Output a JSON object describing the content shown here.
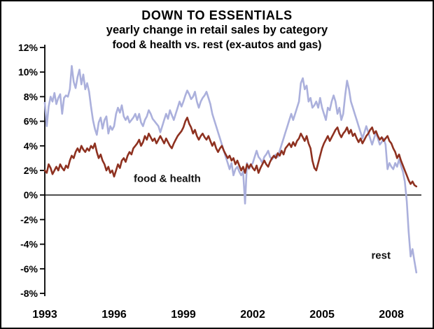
{
  "window": {
    "background": "#ffffff",
    "border_color": "#000000"
  },
  "chart_data": {
    "type": "line",
    "title": "DOWN TO ESSENTIALS",
    "subtitle": "yearly change in retail sales by category",
    "subtitle2": "food & health vs. rest (ex-autos and gas)",
    "xlabel": "",
    "ylabel": "",
    "xlim": [
      1993,
      2009.3
    ],
    "ylim": [
      -8,
      12
    ],
    "grid": false,
    "legend_position": "inline-labels",
    "axis_color": "#000000",
    "x_start": 1993,
    "x_step": 0.0833333,
    "yticks": [
      {
        "value": 12,
        "label": "12%"
      },
      {
        "value": 10,
        "label": "10%"
      },
      {
        "value": 8,
        "label": "8%"
      },
      {
        "value": 6,
        "label": "6%"
      },
      {
        "value": 4,
        "label": "4%"
      },
      {
        "value": 2,
        "label": "2%"
      },
      {
        "value": 0,
        "label": "0%"
      },
      {
        "value": -2,
        "label": "-2%"
      },
      {
        "value": -4,
        "label": "-4%"
      },
      {
        "value": -6,
        "label": "-6%"
      },
      {
        "value": -8,
        "label": "-8%"
      }
    ],
    "xticks": [
      {
        "value": 1993,
        "label": "1993"
      },
      {
        "value": 1996,
        "label": "1996"
      },
      {
        "value": 1999,
        "label": "1999"
      },
      {
        "value": 2002,
        "label": "2002"
      },
      {
        "value": 2005,
        "label": "2005"
      },
      {
        "value": 2008,
        "label": "2008"
      }
    ],
    "series": [
      {
        "name": "rest",
        "color": "#abb0dc",
        "label": {
          "text": "rest",
          "x": 2007.55,
          "y": -5.2
        },
        "values": [
          7.5,
          5.6,
          7.2,
          8.0,
          7.6,
          8.3,
          7.4,
          7.9,
          8.2,
          6.6,
          7.9,
          8.1,
          8.0,
          8.6,
          10.5,
          9.2,
          8.7,
          9.6,
          10.2,
          9.0,
          9.8,
          8.6,
          9.1,
          8.4,
          7.2,
          6.1,
          5.4,
          4.9,
          5.9,
          6.3,
          5.4,
          6.1,
          6.4,
          5.0,
          5.6,
          5.3,
          5.6,
          6.6,
          7.1,
          6.7,
          7.3,
          6.4,
          6.1,
          6.4,
          5.9,
          6.1,
          6.3,
          6.6,
          6.1,
          6.6,
          5.9,
          5.6,
          6.1,
          6.4,
          6.9,
          6.6,
          6.2,
          6.0,
          5.8,
          5.6,
          5.1,
          5.6,
          6.1,
          6.6,
          6.2,
          6.9,
          6.5,
          6.1,
          6.6,
          7.1,
          7.6,
          7.2,
          7.6,
          8.1,
          8.5,
          8.2,
          7.8,
          8.0,
          8.4,
          7.6,
          7.1,
          7.6,
          7.9,
          8.1,
          8.4,
          7.9,
          7.4,
          6.6,
          6.1,
          5.6,
          5.1,
          4.6,
          4.1,
          3.6,
          3.1,
          2.6,
          2.1,
          2.6,
          1.6,
          2.1,
          2.3,
          1.9,
          1.6,
          1.9,
          -0.7,
          2.6,
          2.1,
          2.4,
          2.6,
          3.1,
          3.6,
          3.1,
          2.9,
          2.6,
          3.1,
          3.3,
          3.6,
          3.1,
          2.9,
          3.1,
          3.3,
          3.1,
          3.6,
          4.1,
          4.6,
          5.1,
          5.6,
          6.1,
          6.6,
          6.1,
          6.6,
          7.1,
          7.6,
          9.1,
          9.5,
          8.6,
          8.9,
          7.6,
          7.9,
          7.1,
          7.3,
          7.6,
          7.1,
          7.9,
          7.1,
          6.6,
          6.1,
          7.1,
          6.9,
          7.6,
          8.1,
          7.6,
          6.6,
          7.1,
          6.1,
          6.6,
          8.1,
          9.3,
          8.6,
          7.6,
          7.1,
          6.6,
          6.1,
          5.6,
          5.1,
          4.6,
          5.1,
          5.6,
          5.1,
          4.6,
          4.1,
          4.6,
          5.1,
          4.6,
          4.1,
          4.3,
          4.6,
          4.1,
          2.1,
          2.6,
          2.3,
          2.1,
          2.6,
          2.3,
          2.9,
          2.4,
          1.9,
          1.1,
          -0.5,
          -3.0,
          -5.0,
          -4.4,
          -5.4,
          -6.3
        ]
      },
      {
        "name": "food & health",
        "color": "#8e3120",
        "label": {
          "text": "food & health",
          "x": 1998.3,
          "y": 1.05
        },
        "values": [
          2.0,
          1.8,
          2.5,
          2.2,
          1.7,
          2.0,
          2.3,
          2.0,
          2.5,
          2.2,
          2.0,
          2.4,
          2.2,
          2.8,
          3.2,
          3.0,
          3.5,
          3.8,
          3.5,
          4.0,
          3.7,
          3.5,
          3.8,
          3.6,
          4.0,
          3.8,
          4.2,
          3.5,
          3.0,
          3.3,
          2.8,
          2.5,
          2.0,
          2.3,
          1.8,
          2.0,
          1.5,
          2.0,
          2.5,
          2.2,
          2.8,
          3.0,
          2.7,
          3.2,
          3.5,
          3.3,
          3.8,
          4.0,
          4.2,
          4.5,
          4.0,
          4.3,
          4.8,
          4.5,
          5.0,
          4.7,
          4.4,
          4.6,
          4.2,
          4.5,
          4.8,
          4.5,
          4.2,
          4.6,
          4.3,
          4.0,
          3.8,
          4.2,
          4.5,
          4.8,
          5.0,
          5.2,
          5.5,
          6.0,
          6.3,
          5.8,
          5.5,
          5.0,
          5.3,
          4.8,
          4.5,
          4.8,
          5.0,
          4.7,
          4.5,
          4.8,
          4.4,
          4.0,
          4.3,
          3.8,
          3.5,
          3.8,
          4.0,
          3.6,
          3.3,
          3.0,
          3.2,
          2.8,
          3.0,
          2.5,
          2.8,
          2.4,
          2.0,
          2.3,
          1.8,
          2.5,
          2.2,
          2.5,
          2.2,
          2.0,
          2.4,
          1.8,
          2.2,
          2.5,
          2.8,
          2.5,
          2.3,
          2.7,
          3.0,
          3.2,
          3.0,
          3.4,
          3.2,
          3.6,
          3.3,
          3.8,
          4.0,
          4.2,
          3.9,
          4.3,
          4.0,
          4.4,
          4.6,
          5.0,
          4.7,
          4.4,
          4.8,
          4.2,
          3.8,
          2.8,
          2.2,
          2.0,
          2.6,
          3.2,
          3.8,
          4.2,
          4.5,
          4.8,
          4.4,
          4.7,
          5.0,
          5.3,
          5.5,
          5.0,
          4.7,
          5.0,
          5.2,
          5.5,
          5.0,
          5.3,
          4.8,
          5.0,
          4.6,
          4.3,
          4.6,
          4.2,
          4.5,
          4.8,
          5.0,
          5.3,
          5.5,
          5.0,
          5.2,
          4.8,
          4.5,
          4.7,
          4.4,
          4.6,
          4.8,
          4.4,
          4.2,
          3.8,
          3.5,
          3.0,
          3.3,
          2.8,
          2.4,
          2.0,
          1.6,
          1.2,
          0.9,
          1.1,
          0.8,
          0.7
        ]
      }
    ]
  }
}
